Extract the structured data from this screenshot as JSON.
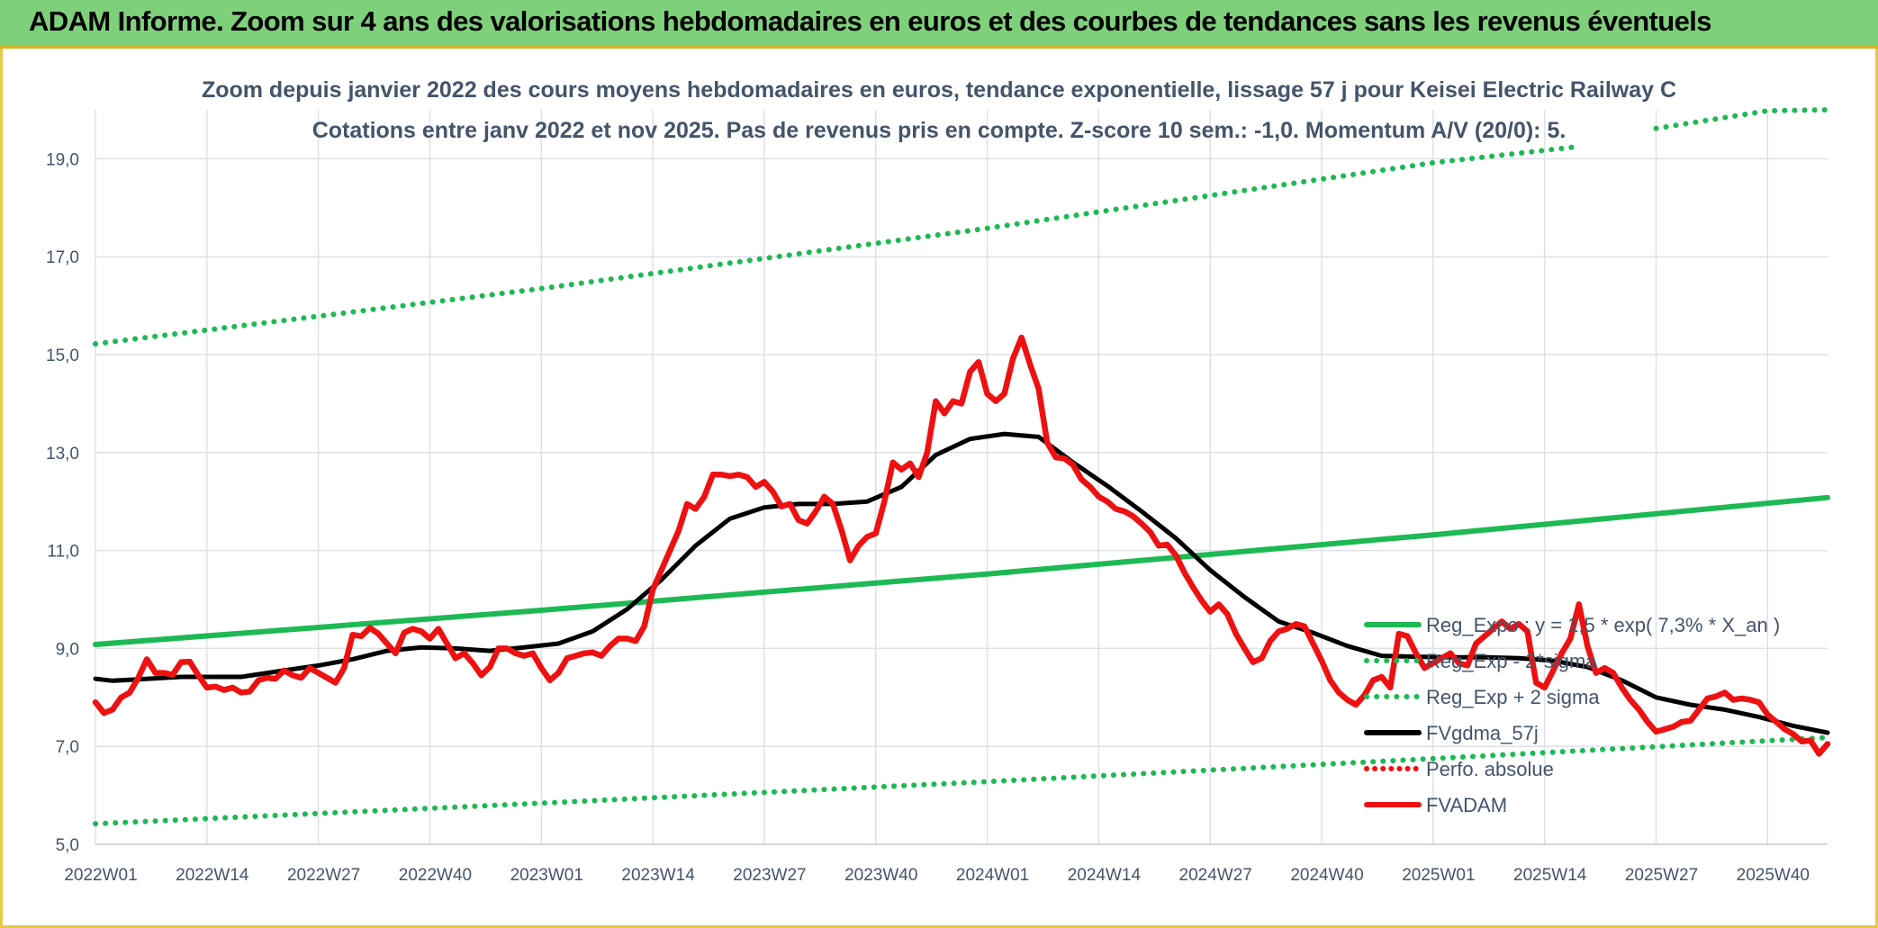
{
  "banner": {
    "title": "ADAM Informe. Zoom sur 4 ans des valorisations hebdomadaires en euros et des courbes de tendances sans les revenus éventuels"
  },
  "colors": {
    "banner_bg": "#7fd07b",
    "trend": "#1db954",
    "bands": "#1db954",
    "gdma": "#000000",
    "adam": "#ee1111",
    "perf": "#ee1111",
    "grid": "#dde1e6",
    "text": "#44546a"
  },
  "chart_data": {
    "type": "line",
    "title": "Zoom depuis janvier 2022 des cours moyens hebdomadaires en euros, tendance exponentielle, lissage 57 j pour Keisei Electric Railway C",
    "subtitle": "Cotations entre janv 2022 et nov 2025. Pas de revenus pris en compte. Z-score 10 sem.: -1,0. Momentum A/V (20/0): 5.",
    "xlabel": "",
    "ylabel": "",
    "ylim": [
      5,
      20
    ],
    "xlim": [
      0,
      202
    ],
    "y_ticks": [
      "5,0",
      "7,0",
      "9,0",
      "11,0",
      "13,0",
      "15,0",
      "17,0",
      "19,0"
    ],
    "y_tick_values": [
      5,
      7,
      9,
      11,
      13,
      15,
      17,
      19
    ],
    "x_tick_labels": [
      "2022W01",
      "2022W14",
      "2022W27",
      "2022W40",
      "2023W01",
      "2023W14",
      "2023W27",
      "2023W40",
      "2024W01",
      "2024W14",
      "2024W27",
      "2024W40",
      "2025W01",
      "2025W14",
      "2025W27",
      "2025W40"
    ],
    "x_tick_positions": [
      0,
      13,
      26,
      39,
      52,
      65,
      78,
      91,
      104,
      117,
      130,
      143,
      156,
      169,
      182,
      195
    ],
    "legend": [
      "Reg_Expo : y = 1,5 * exp( 7,3% *  X_an )",
      "Reg_Exp - 2*sigma",
      "Reg_Exp + 2 sigma",
      "FVgdma_57j",
      "Perfo. absolue",
      "FVADAM"
    ],
    "legend_position": "right",
    "series": [
      {
        "name": "Reg_Expo : y = 1,5 * exp( 7,3% *  X_an )",
        "style": "solid",
        "x": [
          0,
          52,
          104,
          156,
          202
        ],
        "values": [
          9.08,
          9.78,
          10.52,
          11.32,
          12.08
        ]
      },
      {
        "name": "Reg_Exp - 2*sigma",
        "style": "dotted",
        "x": [
          0,
          52,
          104,
          156,
          202
        ],
        "values": [
          5.42,
          5.84,
          6.28,
          6.75,
          7.18
        ]
      },
      {
        "name": "Reg_Exp + 2 sigma",
        "style": "dotted",
        "x": [
          0,
          52,
          104,
          156,
          173,
          178,
          182,
          195,
          202
        ],
        "values": [
          15.22,
          16.35,
          17.58,
          18.92,
          19.25,
          null,
          19.62,
          19.98,
          20.0
        ]
      },
      {
        "name": "FVgdma_57j",
        "style": "solid",
        "x": [
          0,
          2,
          5,
          10,
          17,
          22,
          26,
          30,
          34,
          38,
          42,
          46,
          50,
          54,
          58,
          62,
          66,
          70,
          74,
          78,
          82,
          86,
          90,
          94,
          98,
          102,
          106,
          110,
          114,
          118,
          122,
          126,
          130,
          134,
          138,
          142,
          146,
          150,
          154,
          158,
          162,
          166,
          170,
          174,
          178,
          182,
          186,
          190,
          194,
          198,
          202
        ],
        "values": [
          8.38,
          8.34,
          8.37,
          8.42,
          8.42,
          8.55,
          8.65,
          8.78,
          8.95,
          9.02,
          9.0,
          8.95,
          9.02,
          9.1,
          9.35,
          9.8,
          10.4,
          11.1,
          11.65,
          11.88,
          11.95,
          11.95,
          12.0,
          12.3,
          12.95,
          13.28,
          13.38,
          13.32,
          12.8,
          12.32,
          11.8,
          11.25,
          10.6,
          10.05,
          9.55,
          9.32,
          9.05,
          8.85,
          8.83,
          8.82,
          8.82,
          8.8,
          8.75,
          8.62,
          8.35,
          8.0,
          7.85,
          7.75,
          7.6,
          7.42,
          7.28
        ]
      },
      {
        "name": "FVADAM",
        "style": "solid",
        "x": [
          0,
          1,
          2,
          3,
          4,
          5,
          6,
          7,
          8,
          9,
          10,
          11,
          12,
          13,
          14,
          15,
          16,
          17,
          18,
          19,
          20,
          21,
          22,
          23,
          24,
          25,
          26,
          27,
          28,
          29,
          30,
          31,
          32,
          33,
          34,
          35,
          36,
          37,
          38,
          39,
          40,
          41,
          42,
          43,
          44,
          45,
          46,
          47,
          48,
          49,
          50,
          51,
          52,
          53,
          54,
          55,
          56,
          57,
          58,
          59,
          60,
          61,
          62,
          63,
          64,
          65,
          66,
          67,
          68,
          69,
          70,
          71,
          72,
          73,
          74,
          75,
          76,
          77,
          78,
          79,
          80,
          81,
          82,
          83,
          84,
          85,
          86,
          87,
          88,
          89,
          90,
          91,
          92,
          93,
          94,
          95,
          96,
          97,
          98,
          99,
          100,
          101,
          102,
          103,
          104,
          105,
          106,
          107,
          108,
          109,
          110,
          111,
          112,
          113,
          114,
          115,
          116,
          117,
          118,
          119,
          120,
          121,
          122,
          123,
          124,
          125,
          126,
          127,
          128,
          129,
          130,
          131,
          132,
          133,
          134,
          135,
          136,
          137,
          138,
          139,
          140,
          141,
          142,
          143,
          144,
          145,
          146,
          147,
          148,
          149,
          150,
          151,
          152,
          153,
          154,
          155,
          156,
          157,
          158,
          159,
          160,
          161,
          162,
          163,
          164,
          165,
          166,
          167,
          168,
          169,
          170,
          171,
          172,
          173,
          174,
          175,
          176,
          177,
          178,
          179,
          180,
          181,
          182,
          183,
          184,
          185,
          186,
          187,
          188,
          189,
          190,
          191,
          192,
          193,
          194,
          195,
          196,
          197,
          198,
          199,
          200,
          201,
          202
        ],
        "values": [
          7.9,
          7.68,
          7.75,
          8.0,
          8.1,
          8.4,
          8.78,
          8.5,
          8.5,
          8.46,
          8.72,
          8.73,
          8.45,
          8.2,
          8.22,
          8.15,
          8.2,
          8.1,
          8.12,
          8.35,
          8.4,
          8.38,
          8.55,
          8.45,
          8.4,
          8.6,
          8.5,
          8.4,
          8.3,
          8.6,
          9.28,
          9.25,
          9.42,
          9.3,
          9.1,
          8.9,
          9.32,
          9.4,
          9.35,
          9.2,
          9.4,
          9.1,
          8.8,
          8.9,
          8.7,
          8.45,
          8.62,
          9.0,
          9.0,
          8.9,
          8.85,
          8.9,
          8.6,
          8.35,
          8.5,
          8.8,
          8.85,
          8.9,
          8.92,
          8.85,
          9.05,
          9.2,
          9.2,
          9.15,
          9.45,
          10.2,
          10.6,
          11.0,
          11.4,
          11.95,
          11.85,
          12.1,
          12.55,
          12.55,
          12.52,
          12.55,
          12.5,
          12.3,
          12.4,
          12.2,
          11.9,
          11.95,
          11.62,
          11.55,
          11.8,
          12.1,
          11.95,
          11.42,
          10.8,
          11.1,
          11.28,
          11.35,
          12.0,
          12.8,
          12.65,
          12.78,
          12.5,
          13.0,
          14.05,
          13.8,
          14.05,
          14.0,
          14.65,
          14.85,
          14.2,
          14.05,
          14.2,
          14.92,
          15.35,
          14.8,
          14.3,
          13.2,
          12.9,
          12.88,
          12.75,
          12.45,
          12.3,
          12.1,
          12.0,
          11.85,
          11.8,
          11.7,
          11.55,
          11.38,
          11.1,
          11.12,
          10.9,
          10.55,
          10.25,
          9.98,
          9.75,
          9.9,
          9.7,
          9.3,
          9.0,
          8.72,
          8.8,
          9.15,
          9.35,
          9.4,
          9.5,
          9.45,
          9.1,
          8.75,
          8.35,
          8.1,
          7.95,
          7.85,
          8.05,
          8.35,
          8.42,
          8.2,
          9.3,
          9.25,
          8.9,
          8.6,
          8.7,
          8.8,
          8.9,
          8.7,
          8.65,
          9.1,
          9.25,
          9.4,
          9.55,
          9.4,
          9.5,
          9.35,
          8.3,
          8.2,
          8.55,
          8.9,
          9.2,
          9.9,
          9.05,
          8.5,
          8.6,
          8.5,
          8.2,
          7.95,
          7.75,
          7.5,
          7.3,
          7.35,
          7.4,
          7.5,
          7.52,
          7.75,
          7.98,
          8.02,
          8.1,
          7.95,
          7.98,
          7.95,
          7.9,
          7.65,
          7.5,
          7.35,
          7.25,
          7.1,
          7.12,
          6.85,
          7.05
        ]
      }
    ]
  }
}
